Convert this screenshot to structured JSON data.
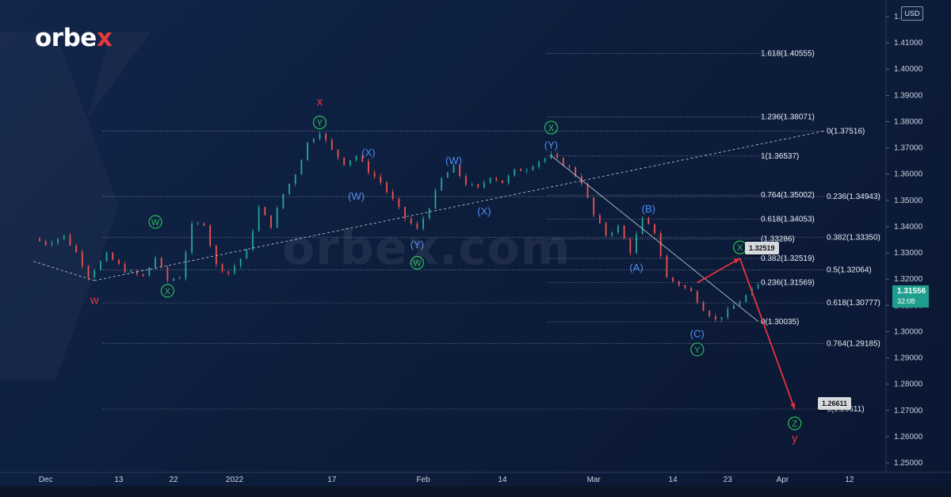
{
  "brand": {
    "logo_text_left": "orbe",
    "logo_text_accent": "x",
    "watermark": "orbex.com"
  },
  "currency_badge": "USD",
  "current_price": {
    "value": "1.31556",
    "countdown": "32:08",
    "color": "#1e9e8c"
  },
  "colors": {
    "background": "#0d1e3d",
    "up_candle": "#26a69a",
    "down_candle": "#ef5350",
    "wave_red": "#e8323c",
    "wave_green": "#2bbd5a",
    "wave_blue": "#4f8cf2",
    "fib_line": "#b9c2d3"
  },
  "chart_data": {
    "type": "candlestick",
    "instrument_currency": "USD",
    "x_ticks": [
      "Dec",
      "13",
      "22",
      "2022",
      "17",
      "Feb",
      "14",
      "Mar",
      "14",
      "23",
      "Apr",
      "12"
    ],
    "y_ticks": [
      "1.42000",
      "1.41000",
      "1.40000",
      "1.39000",
      "1.38000",
      "1.37000",
      "1.36000",
      "1.35000",
      "1.34000",
      "1.33000",
      "1.32000",
      "1.31000",
      "1.30000",
      "1.29000",
      "1.28000",
      "1.27000",
      "1.26000",
      "1.25000"
    ],
    "ylim": [
      1.245,
      1.42
    ],
    "price_path": [
      [
        "2021-11-29",
        1.333
      ],
      [
        "2021-12-01",
        1.331
      ],
      [
        "2021-12-04",
        1.334
      ],
      [
        "2021-12-06",
        1.3275
      ],
      [
        "2021-12-08",
        1.3185
      ],
      [
        "2021-12-11",
        1.3265
      ],
      [
        "2021-12-14",
        1.3205
      ],
      [
        "2021-12-17",
        1.318
      ],
      [
        "2021-12-19",
        1.3255
      ],
      [
        "2021-12-21",
        1.3165
      ],
      [
        "2021-12-23",
        1.318
      ],
      [
        "2021-12-25",
        1.338
      ],
      [
        "2021-12-27",
        1.339
      ],
      [
        "2021-12-29",
        1.3225
      ],
      [
        "2021-12-31",
        1.3195
      ],
      [
        "2022-01-03",
        1.328
      ],
      [
        "2022-01-05",
        1.345
      ],
      [
        "2022-01-07",
        1.338
      ],
      [
        "2022-01-09",
        1.3505
      ],
      [
        "2022-01-11",
        1.3585
      ],
      [
        "2022-01-13",
        1.3705
      ],
      [
        "2022-01-15",
        1.375
      ],
      [
        "2022-01-17",
        1.3675
      ],
      [
        "2022-01-19",
        1.3625
      ],
      [
        "2022-01-21",
        1.3655
      ],
      [
        "2022-01-23",
        1.3595
      ],
      [
        "2022-01-25",
        1.355
      ],
      [
        "2022-01-27",
        1.348
      ],
      [
        "2022-01-29",
        1.341
      ],
      [
        "2022-01-31",
        1.3365
      ],
      [
        "2022-02-02",
        1.3455
      ],
      [
        "2022-02-04",
        1.3565
      ],
      [
        "2022-02-06",
        1.361
      ],
      [
        "2022-02-08",
        1.3545
      ],
      [
        "2022-02-10",
        1.3525
      ],
      [
        "2022-02-12",
        1.3575
      ],
      [
        "2022-02-14",
        1.355
      ],
      [
        "2022-02-16",
        1.3595
      ],
      [
        "2022-02-18",
        1.3605
      ],
      [
        "2022-02-20",
        1.3635
      ],
      [
        "2022-02-22",
        1.3655
      ],
      [
        "2022-02-25",
        1.3605
      ],
      [
        "2022-02-27",
        1.355
      ],
      [
        "2022-03-01",
        1.342
      ],
      [
        "2022-03-03",
        1.3345
      ],
      [
        "2022-03-05",
        1.3375
      ],
      [
        "2022-03-07",
        1.328
      ],
      [
        "2022-03-09",
        1.3405
      ],
      [
        "2022-03-11",
        1.3355
      ],
      [
        "2022-03-13",
        1.3175
      ],
      [
        "2022-03-15",
        1.315
      ],
      [
        "2022-03-17",
        1.312
      ],
      [
        "2022-03-19",
        1.3055
      ],
      [
        "2022-03-21",
        1.301
      ],
      [
        "2022-03-23",
        1.3045
      ],
      [
        "2022-03-25",
        1.3085
      ],
      [
        "2022-03-28",
        1.3145
      ]
    ],
    "fib_levels_right": [
      {
        "label": "0(1.37516)",
        "value": 1.37516
      },
      {
        "label": "0.236(1.34943)",
        "value": 1.34943
      },
      {
        "label": "0.382(1.33350)",
        "value": 1.3335
      },
      {
        "label": "0.5(1.32064)",
        "value": 1.32064
      },
      {
        "label": "0.618(1.30777)",
        "value": 1.30777
      },
      {
        "label": "0.764(1.29185)",
        "value": 1.29185
      },
      {
        "label": "1(1.26611)",
        "value": 1.26611
      }
    ],
    "fib_levels_left": [
      {
        "label": "1.618(1.40555)",
        "value": 1.40555
      },
      {
        "label": "1.236(1.38071)",
        "value": 1.38071
      },
      {
        "label": "1(1.36537)",
        "value": 1.36537
      },
      {
        "label": "0.764(1.35002)",
        "value": 1.35002
      },
      {
        "label": "0.618(1.34053)",
        "value": 1.34053
      },
      {
        "label": "(1.33286)",
        "value": 1.33286
      },
      {
        "label": "0.382(1.32519)",
        "value": 1.32519
      },
      {
        "label": "0.236(1.31569)",
        "value": 1.31569
      },
      {
        "label": "0(1.30035)",
        "value": 1.30035
      }
    ],
    "wave_labels": [
      {
        "text": "w",
        "style": "red",
        "date": "2021-12-09",
        "value": 1.3085
      },
      {
        "text": "x",
        "style": "red",
        "date": "2022-01-15",
        "value": 1.3865
      },
      {
        "text": "y",
        "style": "red",
        "date": "2022-04-03",
        "value": 1.2545
      },
      {
        "text": "W",
        "style": "green-circle",
        "date": "2021-12-19",
        "value": 1.3395
      },
      {
        "text": "X",
        "style": "green-circle",
        "date": "2021-12-21",
        "value": 1.3125
      },
      {
        "text": "Y",
        "style": "green-circle",
        "date": "2022-01-15",
        "value": 1.3785
      },
      {
        "text": "W",
        "style": "green-circle",
        "date": "2022-01-31",
        "value": 1.3235
      },
      {
        "text": "X",
        "style": "green-circle",
        "date": "2022-02-22",
        "value": 1.3765
      },
      {
        "text": "X",
        "style": "green-circle",
        "date": "2022-03-25",
        "value": 1.3295
      },
      {
        "text": "Y",
        "style": "green-circle",
        "date": "2022-03-18",
        "value": 1.2895
      },
      {
        "text": "Z",
        "style": "green-circle",
        "date": "2022-04-03",
        "value": 1.2605
      },
      {
        "text": "(X)",
        "style": "blue",
        "date": "2022-01-23",
        "value": 1.3665
      },
      {
        "text": "(W)",
        "style": "blue",
        "date": "2022-01-21",
        "value": 1.3495
      },
      {
        "text": "(Y)",
        "style": "blue",
        "date": "2022-01-31",
        "value": 1.3305
      },
      {
        "text": "(W)",
        "style": "blue",
        "date": "2022-02-06",
        "value": 1.3635
      },
      {
        "text": "(X)",
        "style": "blue",
        "date": "2022-02-11",
        "value": 1.3435
      },
      {
        "text": "(Y)",
        "style": "blue",
        "date": "2022-02-22",
        "value": 1.3695
      },
      {
        "text": "(B)",
        "style": "blue",
        "date": "2022-03-10",
        "value": 1.3445
      },
      {
        "text": "(A)",
        "style": "blue",
        "date": "2022-03-08",
        "value": 1.3215
      },
      {
        "text": "(C)",
        "style": "blue",
        "date": "2022-03-18",
        "value": 1.2955
      }
    ],
    "projection_path": [
      [
        "2022-03-18",
        1.31569
      ],
      [
        "2022-03-25",
        1.32519
      ],
      [
        "2022-04-03",
        1.26611
      ]
    ],
    "projection_callouts": [
      "1.32519",
      "1.26611"
    ]
  }
}
